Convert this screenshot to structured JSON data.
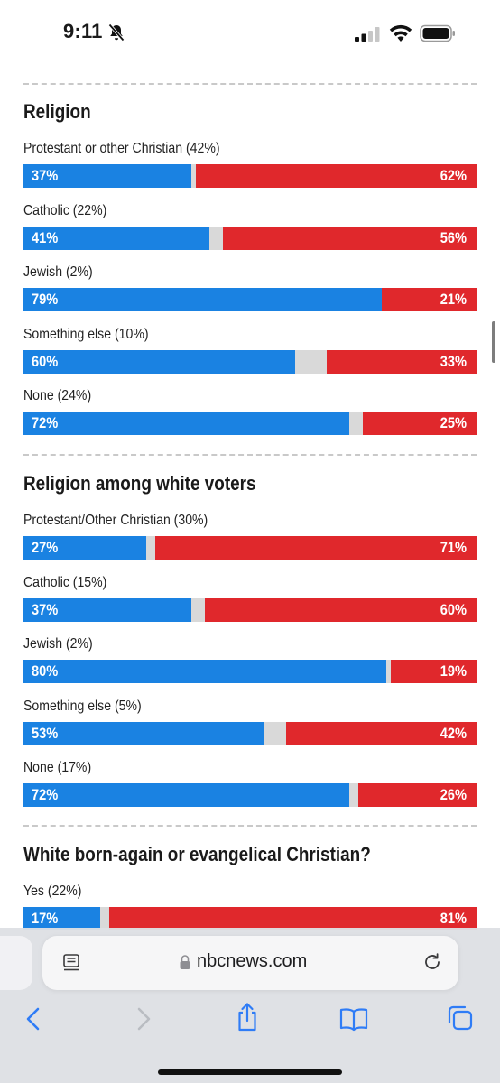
{
  "status_bar": {
    "time": "9:11"
  },
  "colors": {
    "blue": "#1a82e2",
    "red": "#e0282c",
    "gray": "#d9d9d9"
  },
  "sections": [
    {
      "title": "Religion",
      "rows": [
        {
          "label": "Protestant or other Christian (42%)",
          "blue": "37%",
          "red": "62%",
          "blue_value": 37,
          "red_value": 62
        },
        {
          "label": "Catholic (22%)",
          "blue": "41%",
          "red": "56%",
          "blue_value": 41,
          "red_value": 56
        },
        {
          "label": "Jewish (2%)",
          "blue": "79%",
          "red": "21%",
          "blue_value": 79,
          "red_value": 21
        },
        {
          "label": "Something else (10%)",
          "blue": "60%",
          "red": "33%",
          "blue_value": 60,
          "red_value": 33
        },
        {
          "label": "None (24%)",
          "blue": "72%",
          "red": "25%",
          "blue_value": 72,
          "red_value": 25
        }
      ]
    },
    {
      "title": "Religion among white voters",
      "rows": [
        {
          "label": "Protestant/Other Christian (30%)",
          "blue": "27%",
          "red": "71%",
          "blue_value": 27,
          "red_value": 71
        },
        {
          "label": "Catholic (15%)",
          "blue": "37%",
          "red": "60%",
          "blue_value": 37,
          "red_value": 60
        },
        {
          "label": "Jewish (2%)",
          "blue": "80%",
          "red": "19%",
          "blue_value": 80,
          "red_value": 19
        },
        {
          "label": "Something else (5%)",
          "blue": "53%",
          "red": "42%",
          "blue_value": 53,
          "red_value": 42
        },
        {
          "label": "None (17%)",
          "blue": "72%",
          "red": "26%",
          "blue_value": 72,
          "red_value": 26
        }
      ]
    },
    {
      "title": "White born-again or evangelical Christian?",
      "rows": [
        {
          "label": "Yes (22%)",
          "blue": "17%",
          "red": "81%",
          "blue_value": 17,
          "red_value": 81
        }
      ]
    }
  ],
  "browser": {
    "url": "nbcnews.com",
    "icons": [
      "reader-icon",
      "lock-icon",
      "reload-icon",
      "back-icon",
      "forward-icon",
      "share-icon",
      "bookmarks-icon",
      "tabs-icon"
    ]
  }
}
